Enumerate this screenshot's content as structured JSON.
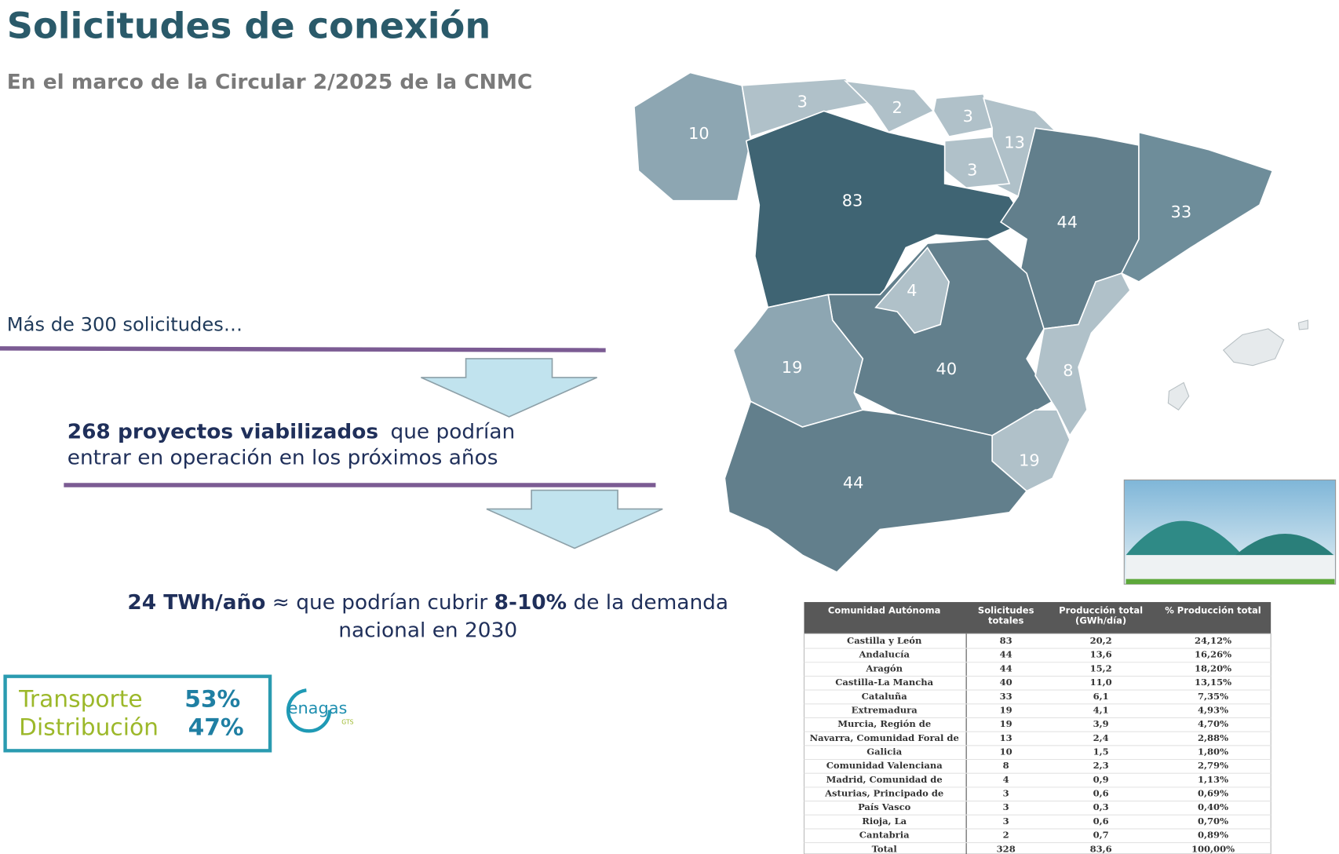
{
  "header": {
    "title": "Solicitudes de conexión",
    "subtitle": "En el marco de la Circular 2/2025 de la CNMC"
  },
  "flow": {
    "step1": "Más de 300 solicitudes…",
    "step2_bold": "268 proyectos viabilizados",
    "step2_rest": "que podrían",
    "step2_line2": "entrar en operación en los próximos años",
    "step3_bold1": "24 TWh/año",
    "step3_mid": " ≈ que podrían cubrir ",
    "step3_bold2": "8-10%",
    "step3_rest": " de la demanda",
    "step3_line2": "nacional en 2030"
  },
  "split": {
    "transport_label": "Transporte",
    "transport_value": "53%",
    "distribution_label": "Distribución",
    "distribution_value": "47%"
  },
  "logo": {
    "name": "enagas",
    "sub": "GTS"
  },
  "map": {
    "regions": [
      {
        "value": "10"
      },
      {
        "value": "3"
      },
      {
        "value": "2"
      },
      {
        "value": "3"
      },
      {
        "value": "13"
      },
      {
        "value": "3"
      },
      {
        "value": "83"
      },
      {
        "value": "44"
      },
      {
        "value": "33"
      },
      {
        "value": "40"
      },
      {
        "value": "4"
      },
      {
        "value": "19"
      },
      {
        "value": "8"
      },
      {
        "value": "19"
      },
      {
        "value": "44"
      }
    ]
  },
  "table": {
    "header": [
      [
        "Comunidad Autónoma"
      ],
      [
        "Solicitudes",
        "totales"
      ],
      [
        "Producción total",
        "(GWh/día)"
      ],
      [
        "% Producción total"
      ]
    ],
    "rows": [
      [
        "Castilla y León",
        "83",
        "20,2",
        "24,12%"
      ],
      [
        "Andalucía",
        "44",
        "13,6",
        "16,26%"
      ],
      [
        "Aragón",
        "44",
        "15,2",
        "18,20%"
      ],
      [
        "Castilla-La Mancha",
        "40",
        "11,0",
        "13,15%"
      ],
      [
        "Cataluña",
        "33",
        "6,1",
        "7,35%"
      ],
      [
        "Extremadura",
        "19",
        "4,1",
        "4,93%"
      ],
      [
        "Murcia, Región de",
        "19",
        "3,9",
        "4,70%"
      ],
      [
        "Navarra, Comunidad Foral de",
        "13",
        "2,4",
        "2,88%"
      ],
      [
        "Galicia",
        "10",
        "1,5",
        "1,80%"
      ],
      [
        "Comunidad Valenciana",
        "8",
        "2,3",
        "2,79%"
      ],
      [
        "Madrid, Comunidad de",
        "4",
        "0,9",
        "1,13%"
      ],
      [
        "Asturias, Principado de",
        "3",
        "0,6",
        "0,69%"
      ],
      [
        "País Vasco",
        "3",
        "0,3",
        "0,40%"
      ],
      [
        "Rioja, La",
        "3",
        "0,6",
        "0,70%"
      ],
      [
        "Cantabria",
        "2",
        "0,7",
        "0,89%"
      ],
      [
        "Total",
        "328",
        "83,6",
        "100,00%"
      ]
    ]
  }
}
